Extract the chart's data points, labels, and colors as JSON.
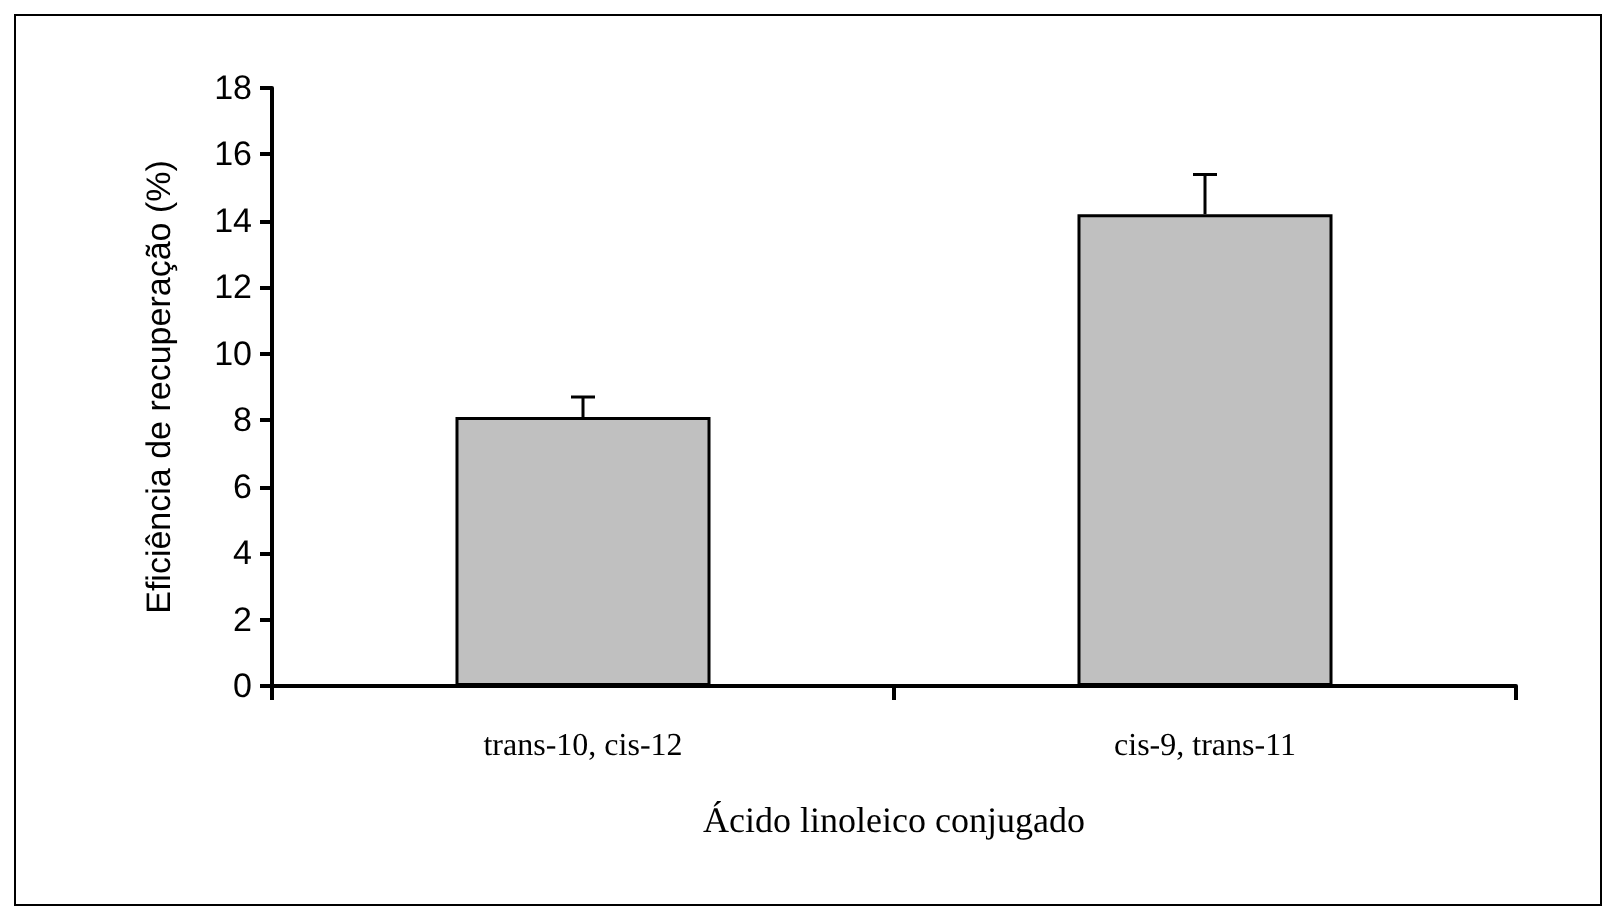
{
  "chart_data": {
    "type": "bar",
    "xlabel": "Ácido linoleico conjugado",
    "ylabel": "Eficiência de recuperação (%)",
    "categories": [
      "trans-10, cis-12",
      "cis-9, trans-11"
    ],
    "series": [
      {
        "color": "#c0c0c0",
        "values": [
          8.1,
          14.2
        ],
        "errors": [
          [
            8.1,
            8.7
          ],
          [
            14.2,
            15.4
          ]
        ]
      }
    ],
    "ylim": [
      0,
      18
    ],
    "yticks": [
      0,
      2,
      4,
      6,
      8,
      10,
      12,
      14,
      16,
      18
    ],
    "grid": false
  }
}
